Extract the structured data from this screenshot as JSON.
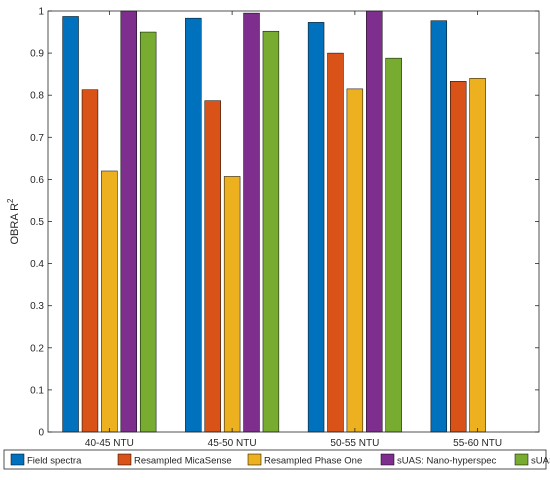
{
  "chart_data": {
    "type": "bar",
    "categories": [
      "40-45 NTU",
      "45-50 NTU",
      "50-55 NTU",
      "55-60 NTU"
    ],
    "series": [
      {
        "name": "Field spectra",
        "color": "#0072BD",
        "values": [
          0.987,
          0.983,
          0.973,
          0.977
        ]
      },
      {
        "name": "Resampled MicaSense",
        "color": "#D95319",
        "values": [
          0.813,
          0.787,
          0.9,
          0.833
        ]
      },
      {
        "name": "Resampled Phase One",
        "color": "#EDB120",
        "values": [
          0.62,
          0.607,
          0.815,
          0.84
        ]
      },
      {
        "name": "sUAS: Nano-hyperspec",
        "color": "#7E2F8E",
        "values": [
          1.0,
          0.995,
          1.0,
          null
        ]
      },
      {
        "name": "sUAS: RGB",
        "color": "#77AC30",
        "values": [
          0.95,
          0.952,
          0.888,
          null
        ]
      }
    ],
    "ylabel_prefix": "OBRA R",
    "ylabel_sup": "2",
    "ylim": [
      0,
      1
    ],
    "yticks": [
      "0",
      "0.1",
      "0.2",
      "0.3",
      "0.4",
      "0.5",
      "0.6",
      "0.7",
      "0.8",
      "0.9",
      "1"
    ],
    "legend_position": "bottom",
    "grid": false
  }
}
